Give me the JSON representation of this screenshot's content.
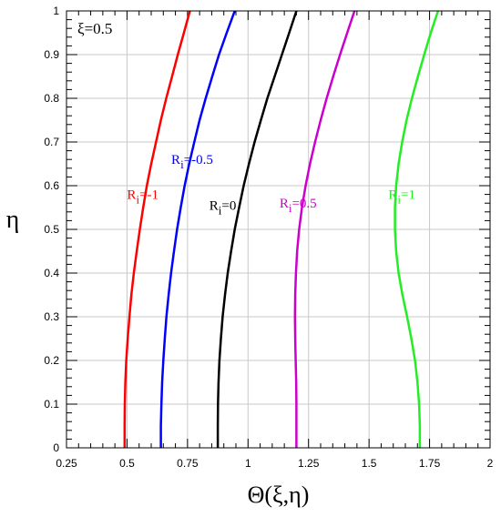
{
  "chart_data": {
    "type": "line",
    "annotation": "ξ=0.5",
    "xlabel": "Θ(ξ,η)",
    "ylabel": "η",
    "xlim": [
      0.25,
      2
    ],
    "ylim": [
      0,
      1
    ],
    "xticks": [
      0.25,
      0.5,
      0.75,
      1,
      1.25,
      1.5,
      1.75,
      2
    ],
    "xtick_labels": [
      "0.25",
      "0.5",
      "0.75",
      "1",
      "1.25",
      "1.5",
      "1.75",
      "2"
    ],
    "yticks": [
      0,
      0.1,
      0.2,
      0.3,
      0.4,
      0.5,
      0.6,
      0.7,
      0.8,
      0.9,
      1
    ],
    "ytick_labels": [
      "0",
      "0.1",
      "0.2",
      "0.3",
      "0.4",
      "0.5",
      "0.6",
      "0.7",
      "0.8",
      "0.9",
      "1"
    ],
    "grid": true,
    "series": [
      {
        "label_base": "R",
        "label_sub": "i",
        "label_value": "=-1",
        "color": "#ff0000",
        "label_at": [
          0.5,
          0.57
        ],
        "points": [
          [
            0.49,
            0
          ],
          [
            0.49,
            0.05
          ],
          [
            0.491,
            0.1
          ],
          [
            0.493,
            0.15
          ],
          [
            0.497,
            0.2
          ],
          [
            0.503,
            0.25
          ],
          [
            0.51,
            0.3
          ],
          [
            0.518,
            0.35
          ],
          [
            0.528,
            0.4
          ],
          [
            0.54,
            0.45
          ],
          [
            0.553,
            0.5
          ],
          [
            0.567,
            0.55
          ],
          [
            0.582,
            0.6
          ],
          [
            0.6,
            0.65
          ],
          [
            0.62,
            0.7
          ],
          [
            0.64,
            0.75
          ],
          [
            0.662,
            0.8
          ],
          [
            0.686,
            0.85
          ],
          [
            0.71,
            0.9
          ],
          [
            0.735,
            0.95
          ],
          [
            0.76,
            1.0
          ]
        ]
      },
      {
        "label_base": "R",
        "label_sub": "i",
        "label_value": "=-0.5",
        "color": "#0000ff",
        "label_at": [
          0.683,
          0.65
        ],
        "points": [
          [
            0.64,
            0
          ],
          [
            0.64,
            0.05
          ],
          [
            0.642,
            0.1
          ],
          [
            0.645,
            0.15
          ],
          [
            0.65,
            0.2
          ],
          [
            0.656,
            0.25
          ],
          [
            0.663,
            0.3
          ],
          [
            0.672,
            0.35
          ],
          [
            0.682,
            0.4
          ],
          [
            0.694,
            0.45
          ],
          [
            0.707,
            0.5
          ],
          [
            0.722,
            0.55
          ],
          [
            0.738,
            0.6
          ],
          [
            0.757,
            0.65
          ],
          [
            0.778,
            0.7
          ],
          [
            0.8,
            0.75
          ],
          [
            0.825,
            0.8
          ],
          [
            0.852,
            0.85
          ],
          [
            0.88,
            0.9
          ],
          [
            0.912,
            0.95
          ],
          [
            0.945,
            1.0
          ]
        ]
      },
      {
        "label_base": "R",
        "label_sub": "i",
        "label_value": "=0",
        "color": "#000000",
        "label_at": [
          0.84,
          0.545
        ],
        "points": [
          [
            0.875,
            0
          ],
          [
            0.875,
            0.05
          ],
          [
            0.876,
            0.1
          ],
          [
            0.878,
            0.15
          ],
          [
            0.882,
            0.2
          ],
          [
            0.888,
            0.25
          ],
          [
            0.895,
            0.3
          ],
          [
            0.905,
            0.35
          ],
          [
            0.916,
            0.4
          ],
          [
            0.93,
            0.45
          ],
          [
            0.945,
            0.5
          ],
          [
            0.963,
            0.55
          ],
          [
            0.982,
            0.6
          ],
          [
            1.004,
            0.65
          ],
          [
            1.027,
            0.7
          ],
          [
            1.053,
            0.75
          ],
          [
            1.08,
            0.8
          ],
          [
            1.11,
            0.85
          ],
          [
            1.14,
            0.9
          ],
          [
            1.17,
            0.95
          ],
          [
            1.2,
            1.0
          ]
        ]
      },
      {
        "label_base": "R",
        "label_sub": "i",
        "label_value": "=0.5",
        "color": "#cc00cc",
        "label_at": [
          1.13,
          0.55
        ],
        "points": [
          [
            1.2,
            0
          ],
          [
            1.2,
            0.05
          ],
          [
            1.2,
            0.1
          ],
          [
            1.199,
            0.15
          ],
          [
            1.197,
            0.2
          ],
          [
            1.195,
            0.25
          ],
          [
            1.194,
            0.3
          ],
          [
            1.195,
            0.35
          ],
          [
            1.198,
            0.4
          ],
          [
            1.203,
            0.45
          ],
          [
            1.211,
            0.5
          ],
          [
            1.223,
            0.55
          ],
          [
            1.238,
            0.6
          ],
          [
            1.256,
            0.65
          ],
          [
            1.277,
            0.7
          ],
          [
            1.3,
            0.75
          ],
          [
            1.325,
            0.8
          ],
          [
            1.352,
            0.85
          ],
          [
            1.38,
            0.9
          ],
          [
            1.41,
            0.95
          ],
          [
            1.44,
            1.0
          ]
        ]
      },
      {
        "label_base": "R",
        "label_sub": "i",
        "label_value": "=1",
        "color": "#22ee22",
        "label_at": [
          1.58,
          0.57
        ],
        "points": [
          [
            1.71,
            0
          ],
          [
            1.71,
            0.05
          ],
          [
            1.707,
            0.1
          ],
          [
            1.7,
            0.15
          ],
          [
            1.69,
            0.2
          ],
          [
            1.675,
            0.25
          ],
          [
            1.657,
            0.3
          ],
          [
            1.638,
            0.35
          ],
          [
            1.622,
            0.4
          ],
          [
            1.612,
            0.45
          ],
          [
            1.607,
            0.5
          ],
          [
            1.607,
            0.55
          ],
          [
            1.612,
            0.6
          ],
          [
            1.622,
            0.65
          ],
          [
            1.637,
            0.7
          ],
          [
            1.655,
            0.75
          ],
          [
            1.677,
            0.8
          ],
          [
            1.702,
            0.85
          ],
          [
            1.728,
            0.9
          ],
          [
            1.755,
            0.95
          ],
          [
            1.785,
            1.0
          ]
        ]
      }
    ]
  }
}
